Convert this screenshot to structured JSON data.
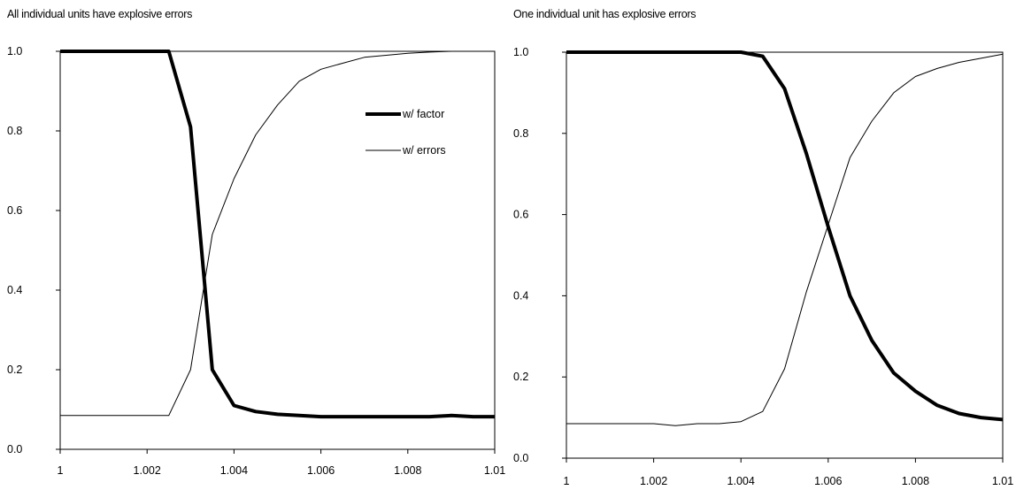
{
  "chart_data": [
    {
      "type": "line",
      "title": "All individual units have explosive errors",
      "xlabel": "",
      "ylabel": "",
      "xlim": [
        1,
        1.01
      ],
      "ylim": [
        0,
        1
      ],
      "x_ticks": [
        "1",
        "1.002",
        "1.004",
        "1.006",
        "1.008",
        "1.01"
      ],
      "y_ticks": [
        "0.0",
        "0.2",
        "0.4",
        "0.6",
        "0.8",
        "1.0"
      ],
      "grid": false,
      "legend": "top-right",
      "x": [
        1.0,
        1.0005,
        1.001,
        1.0015,
        1.002,
        1.0025,
        1.003,
        1.0035,
        1.004,
        1.0045,
        1.005,
        1.0055,
        1.006,
        1.0065,
        1.007,
        1.0075,
        1.008,
        1.0085,
        1.009,
        1.0095,
        1.01
      ],
      "series": [
        {
          "name": "w/ factor",
          "style": "thick",
          "values": [
            1.0,
            1.0,
            1.0,
            1.0,
            1.0,
            1.0,
            0.81,
            0.2,
            0.11,
            0.095,
            0.088,
            0.085,
            0.082,
            0.082,
            0.082,
            0.082,
            0.082,
            0.082,
            0.085,
            0.082,
            0.082
          ]
        },
        {
          "name": "w/ errors",
          "style": "thin",
          "values": [
            0.085,
            0.085,
            0.085,
            0.085,
            0.085,
            0.085,
            0.2,
            0.54,
            0.68,
            0.79,
            0.865,
            0.925,
            0.955,
            0.97,
            0.985,
            0.99,
            0.995,
            0.998,
            1.0,
            1.0,
            1.0
          ]
        }
      ]
    },
    {
      "type": "line",
      "title": "One individual unit has explosive errors",
      "xlabel": "",
      "ylabel": "",
      "xlim": [
        1,
        1.01
      ],
      "ylim": [
        0,
        1
      ],
      "x_ticks": [
        "1",
        "1.002",
        "1.004",
        "1.006",
        "1.008",
        "1.01"
      ],
      "y_ticks": [
        "0.0",
        "0.2",
        "0.4",
        "0.6",
        "0.8",
        "1.0"
      ],
      "grid": false,
      "legend": "none",
      "x": [
        1.0,
        1.0005,
        1.001,
        1.0015,
        1.002,
        1.0025,
        1.003,
        1.0035,
        1.004,
        1.0045,
        1.005,
        1.0055,
        1.006,
        1.0065,
        1.007,
        1.0075,
        1.008,
        1.0085,
        1.009,
        1.0095,
        1.01
      ],
      "series": [
        {
          "name": "w/ factor",
          "style": "thick",
          "values": [
            1.0,
            1.0,
            1.0,
            1.0,
            1.0,
            1.0,
            1.0,
            1.0,
            1.0,
            0.99,
            0.91,
            0.75,
            0.57,
            0.4,
            0.29,
            0.21,
            0.165,
            0.13,
            0.11,
            0.1,
            0.095
          ]
        },
        {
          "name": "w/ errors",
          "style": "thin",
          "values": [
            0.085,
            0.085,
            0.085,
            0.085,
            0.085,
            0.08,
            0.085,
            0.085,
            0.09,
            0.115,
            0.22,
            0.41,
            0.575,
            0.74,
            0.83,
            0.9,
            0.94,
            0.96,
            0.975,
            0.985,
            0.995
          ]
        }
      ]
    }
  ]
}
